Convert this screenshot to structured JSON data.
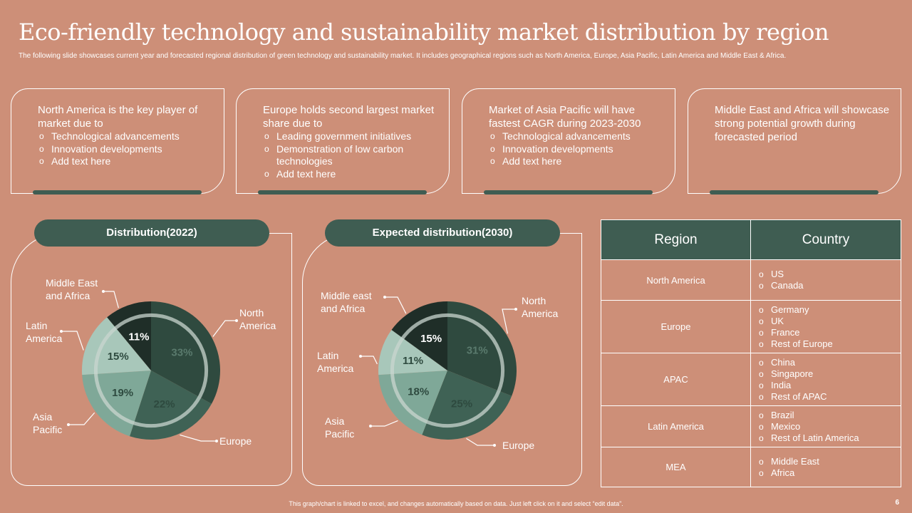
{
  "title": "Eco-friendly technology and sustainability market distribution by region",
  "subtitle": "The following slide showcases current year and forecasted regional distribution of green technology and sustainability market. It includes geographical regions such as North America, Europe, Asia Pacific, Latin America and Middle East & Africa.",
  "cards": [
    {
      "heading": "North America is the key player of market due to",
      "bullets": [
        "Technological advancements",
        "Innovation developments",
        "Add text here"
      ]
    },
    {
      "heading": "Europe holds second largest market share due to",
      "bullets": [
        "Leading government initiatives",
        "Demonstration of low carbon technologies",
        "Add text here"
      ]
    },
    {
      "heading": "Market of Asia Pacific will have fastest CAGR during 2023-2030",
      "bullets": [
        "Technological advancements",
        "Innovation developments",
        "Add text here"
      ]
    },
    {
      "heading": "Middle East and Africa will showcase strong potential growth during forecasted period",
      "bullets": []
    }
  ],
  "colors": {
    "background": "#CD8F78",
    "north_america": "#2F4A3F",
    "europe": "#3F6255",
    "asia_pacific": "#7FA898",
    "latin_america": "#A8C7BA",
    "mea": "#1F2E28",
    "pill": "#3F5D52"
  },
  "chart_data": [
    {
      "type": "pie",
      "title": "Distribution(2022)",
      "categories": [
        "North America",
        "Europe",
        "Asia Pacific",
        "Latin America",
        "Middle East and Africa"
      ],
      "labels": [
        "North\nAmerica",
        "Europe",
        "Asia\nPacific",
        "Latin\nAmerica",
        "Middle East\nand Africa"
      ],
      "values": [
        33,
        22,
        19,
        15,
        11
      ],
      "value_labels": [
        "33%",
        "22%",
        "19%",
        "15%",
        "11%"
      ]
    },
    {
      "type": "pie",
      "title": "Expected distribution(2030)",
      "categories": [
        "North America",
        "Europe",
        "Asia Pacific",
        "Latin America",
        "Middle east and Africa"
      ],
      "labels": [
        "North\nAmerica",
        "Europe",
        "Asia\nPacific",
        "Latin\nAmerica",
        "Middle east\nand Africa"
      ],
      "values": [
        31,
        25,
        18,
        11,
        15
      ],
      "value_labels": [
        "31%",
        "25%",
        "18%",
        "11%",
        "15%"
      ]
    }
  ],
  "table": {
    "headers": [
      "Region",
      "Country"
    ],
    "rows": [
      {
        "region": "North America",
        "countries": [
          "US",
          "Canada"
        ]
      },
      {
        "region": "Europe",
        "countries": [
          "Germany",
          "UK",
          "France",
          "Rest of Europe"
        ]
      },
      {
        "region": "APAC",
        "countries": [
          "China",
          "Singapore",
          "India",
          "Rest of APAC"
        ]
      },
      {
        "region": "Latin America",
        "countries": [
          "Brazil",
          "Mexico",
          "Rest of Latin America"
        ]
      },
      {
        "region": "MEA",
        "countries": [
          "Middle East",
          "Africa"
        ]
      }
    ]
  },
  "footer": "This graph/chart is linked to excel, and changes automatically based on data. Just left click on it and select “edit data”.",
  "page_number": "6"
}
